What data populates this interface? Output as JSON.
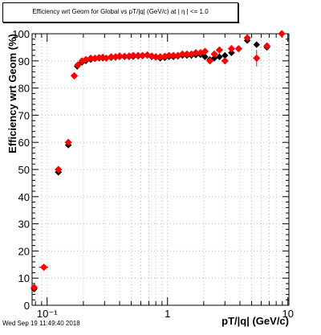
{
  "chart_data": {
    "type": "scatter",
    "title": "Efficiency wrt Geom for Global vs pT/|q| (GeV/c) at |   η | <= 1.0",
    "xlabel": "pT/|q| (GeV/c)",
    "ylabel": "Efficiency wrt Geom (%)",
    "xscale": "log",
    "xlim": [
      0.075,
      10.2
    ],
    "ylim": [
      0,
      100
    ],
    "grid": true,
    "x_ticks": [
      {
        "value": 0.1,
        "label": "10⁻¹"
      },
      {
        "value": 1,
        "label": "1"
      },
      {
        "value": 10,
        "label": "10"
      }
    ],
    "y_ticks": [
      0,
      10,
      20,
      30,
      40,
      50,
      60,
      70,
      80,
      90,
      100
    ],
    "series": [
      {
        "marker": "diamond",
        "color": "#000000",
        "points": [
          {
            "x": 0.078,
            "y": 6.0,
            "xerr": 0.003
          },
          {
            "x": 0.094,
            "y": 14.0,
            "xerr": 0.008
          },
          {
            "x": 0.124,
            "y": 49.0,
            "xerr": 0.008
          },
          {
            "x": 0.15,
            "y": 59.0,
            "xerr": 0.005
          },
          {
            "x": 0.178,
            "y": 88.0,
            "xerr": 0.005
          },
          {
            "x": 0.195,
            "y": 89.5
          },
          {
            "x": 0.21,
            "y": 90.0
          },
          {
            "x": 0.23,
            "y": 90.5
          },
          {
            "x": 0.25,
            "y": 90.8
          },
          {
            "x": 0.27,
            "y": 91.0
          },
          {
            "x": 0.29,
            "y": 91.0
          },
          {
            "x": 0.31,
            "y": 91.0
          },
          {
            "x": 0.34,
            "y": 91.2
          },
          {
            "x": 0.37,
            "y": 91.3
          },
          {
            "x": 0.4,
            "y": 91.5
          },
          {
            "x": 0.44,
            "y": 91.5
          },
          {
            "x": 0.48,
            "y": 91.5
          },
          {
            "x": 0.52,
            "y": 91.6
          },
          {
            "x": 0.57,
            "y": 91.7
          },
          {
            "x": 0.62,
            "y": 91.8
          },
          {
            "x": 0.68,
            "y": 92.0
          },
          {
            "x": 0.74,
            "y": 91.5
          },
          {
            "x": 0.8,
            "y": 91.3
          },
          {
            "x": 0.87,
            "y": 91.0
          },
          {
            "x": 0.95,
            "y": 91.2
          },
          {
            "x": 1.03,
            "y": 91.5
          },
          {
            "x": 1.12,
            "y": 91.5
          },
          {
            "x": 1.22,
            "y": 91.7
          },
          {
            "x": 1.33,
            "y": 92.0
          },
          {
            "x": 1.45,
            "y": 92.0
          },
          {
            "x": 1.58,
            "y": 92.0
          },
          {
            "x": 1.72,
            "y": 92.2
          },
          {
            "x": 1.88,
            "y": 92.3
          },
          {
            "x": 2.05,
            "y": 91.5
          },
          {
            "x": 2.25,
            "y": 90.5
          },
          {
            "x": 2.45,
            "y": 91.0
          },
          {
            "x": 2.7,
            "y": 91.5
          },
          {
            "x": 3.0,
            "y": 92.0
          },
          {
            "x": 3.4,
            "y": 93.0
          },
          {
            "x": 3.9,
            "y": 94.5
          },
          {
            "x": 4.6,
            "y": 97.5
          },
          {
            "x": 5.5,
            "y": 96.0
          },
          {
            "x": 6.7,
            "y": 95.0
          }
        ]
      },
      {
        "marker": "diamond",
        "color": "#ff0000",
        "points": [
          {
            "x": 0.078,
            "y": 6.5,
            "xerr": 0.003
          },
          {
            "x": 0.094,
            "y": 14.0,
            "xerr": 0.008
          },
          {
            "x": 0.124,
            "y": 50.0,
            "xerr": 0.008
          },
          {
            "x": 0.15,
            "y": 60.0,
            "xerr": 0.005
          },
          {
            "x": 0.168,
            "y": 84.5
          },
          {
            "x": 0.18,
            "y": 88.5
          },
          {
            "x": 0.195,
            "y": 90.0
          },
          {
            "x": 0.21,
            "y": 90.5
          },
          {
            "x": 0.23,
            "y": 91.0
          },
          {
            "x": 0.25,
            "y": 91.0
          },
          {
            "x": 0.27,
            "y": 91.2
          },
          {
            "x": 0.29,
            "y": 91.3
          },
          {
            "x": 0.31,
            "y": 91.0
          },
          {
            "x": 0.34,
            "y": 91.5
          },
          {
            "x": 0.37,
            "y": 91.5
          },
          {
            "x": 0.4,
            "y": 91.8
          },
          {
            "x": 0.44,
            "y": 91.7
          },
          {
            "x": 0.48,
            "y": 91.8
          },
          {
            "x": 0.52,
            "y": 92.0
          },
          {
            "x": 0.57,
            "y": 92.0
          },
          {
            "x": 0.62,
            "y": 92.0
          },
          {
            "x": 0.68,
            "y": 92.2
          },
          {
            "x": 0.74,
            "y": 91.8
          },
          {
            "x": 0.8,
            "y": 91.5
          },
          {
            "x": 0.87,
            "y": 91.5
          },
          {
            "x": 0.95,
            "y": 91.7
          },
          {
            "x": 1.03,
            "y": 92.0
          },
          {
            "x": 1.12,
            "y": 92.0
          },
          {
            "x": 1.22,
            "y": 92.0
          },
          {
            "x": 1.33,
            "y": 92.5
          },
          {
            "x": 1.45,
            "y": 92.5
          },
          {
            "x": 1.58,
            "y": 92.5
          },
          {
            "x": 1.72,
            "y": 93.0
          },
          {
            "x": 1.88,
            "y": 93.0
          },
          {
            "x": 2.05,
            "y": 93.5
          },
          {
            "x": 2.25,
            "y": 90.0
          },
          {
            "x": 2.45,
            "y": 92.5
          },
          {
            "x": 2.7,
            "y": 94.0
          },
          {
            "x": 3.0,
            "y": 90.0
          },
          {
            "x": 3.4,
            "y": 94.5
          },
          {
            "x": 3.9,
            "y": 94.5
          },
          {
            "x": 4.6,
            "y": 98.5
          },
          {
            "x": 5.5,
            "y": 91.0,
            "yerr": 3.0
          },
          {
            "x": 6.7,
            "y": 95.5
          },
          {
            "x": 8.9,
            "y": 100.0
          }
        ]
      }
    ]
  },
  "footer": {
    "timestamp": "Wed Sep 19 11:49:40 2018"
  }
}
